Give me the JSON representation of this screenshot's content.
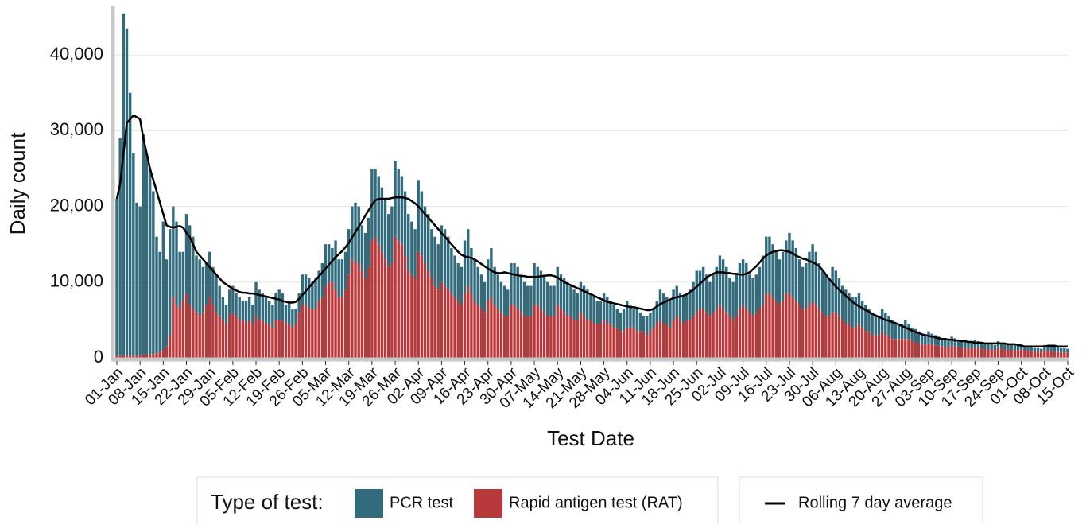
{
  "chart_data": {
    "type": "bar",
    "stacked": true,
    "grid": true,
    "x_label": "Test Date",
    "y_label": "Daily count",
    "legend_title": "Type of test:",
    "ylim": [
      0,
      46000
    ],
    "yticks": [
      0,
      {
        "value": 10000,
        "label": "10,000"
      },
      {
        "value": 20000,
        "label": "20,000"
      },
      {
        "value": 30000,
        "label": "30,000"
      },
      {
        "value": 40000,
        "label": "40,000"
      }
    ],
    "categories": [
      "01-Jan",
      null,
      null,
      null,
      null,
      null,
      null,
      "08-Jan",
      null,
      null,
      null,
      null,
      null,
      null,
      "15-Jan",
      null,
      null,
      null,
      null,
      null,
      null,
      "22-Jan",
      null,
      null,
      null,
      null,
      null,
      null,
      "29-Jan",
      null,
      null,
      null,
      null,
      null,
      null,
      "05-Feb",
      null,
      null,
      null,
      null,
      null,
      null,
      "12-Feb",
      null,
      null,
      null,
      null,
      null,
      null,
      "19-Feb",
      null,
      null,
      null,
      null,
      null,
      null,
      "26-Feb",
      null,
      null,
      null,
      null,
      null,
      null,
      "05-Mar",
      null,
      null,
      null,
      null,
      null,
      null,
      "12-Mar",
      null,
      null,
      null,
      null,
      null,
      null,
      "19-Mar",
      null,
      null,
      null,
      null,
      null,
      null,
      "26-Mar",
      null,
      null,
      null,
      null,
      null,
      null,
      "02-Apr",
      null,
      null,
      null,
      null,
      null,
      null,
      "09-Apr",
      null,
      null,
      null,
      null,
      null,
      null,
      "16-Apr",
      null,
      null,
      null,
      null,
      null,
      null,
      "23-Apr",
      null,
      null,
      null,
      null,
      null,
      null,
      "30-Apr",
      null,
      null,
      null,
      null,
      null,
      null,
      "07-May",
      null,
      null,
      null,
      null,
      null,
      null,
      "14-May",
      null,
      null,
      null,
      null,
      null,
      null,
      "21-May",
      null,
      null,
      null,
      null,
      null,
      null,
      "28-May",
      null,
      null,
      null,
      null,
      null,
      null,
      "04-Jun",
      null,
      null,
      null,
      null,
      null,
      null,
      "11-Jun",
      null,
      null,
      null,
      null,
      null,
      null,
      "18-Jun",
      null,
      null,
      null,
      null,
      null,
      null,
      "25-Jun",
      null,
      null,
      null,
      null,
      null,
      null,
      "02-Jul",
      null,
      null,
      null,
      null,
      null,
      null,
      "09-Jul",
      null,
      null,
      null,
      null,
      null,
      null,
      "16-Jul",
      null,
      null,
      null,
      null,
      null,
      null,
      "23-Jul",
      null,
      null,
      null,
      null,
      null,
      null,
      "30-Jul",
      null,
      null,
      null,
      null,
      null,
      null,
      "06-Aug",
      null,
      null,
      null,
      null,
      null,
      null,
      "13-Aug",
      null,
      null,
      null,
      null,
      null,
      null,
      "20-Aug",
      null,
      null,
      null,
      null,
      null,
      null,
      "27-Aug",
      null,
      null,
      null,
      null,
      null,
      null,
      "03-Sep",
      null,
      null,
      null,
      null,
      null,
      null,
      "10-Sep",
      null,
      null,
      null,
      null,
      null,
      null,
      "17-Sep",
      null,
      null,
      null,
      null,
      null,
      null,
      "24-Sep",
      null,
      null,
      null,
      null,
      null,
      null,
      "01-Oct",
      null,
      null,
      null,
      null,
      null,
      null,
      "08-Oct",
      null,
      null,
      null,
      null,
      null,
      null,
      "15-Oct"
    ],
    "series": [
      {
        "name": "PCR test",
        "color": "#326b7c",
        "values": [
          20700,
          28700,
          45200,
          43200,
          34700,
          26700,
          20200,
          19700,
          29000,
          26600,
          24500,
          21500,
          15400,
          13200,
          17000,
          11500,
          14000,
          12000,
          11000,
          7500,
          6500,
          10500,
          10500,
          9500,
          7500,
          7500,
          6000,
          5500,
          6000,
          5000,
          5000,
          4000,
          3000,
          2500,
          3500,
          3500,
          3000,
          3000,
          2500,
          3000,
          3000,
          2500,
          4500,
          4000,
          3500,
          3500,
          3000,
          3000,
          3500,
          4000,
          3500,
          2500,
          3000,
          2500,
          2000,
          2500,
          4000,
          4000,
          4000,
          3500,
          4000,
          4000,
          4500,
          5500,
          5000,
          4500,
          6500,
          5000,
          5000,
          5000,
          6000,
          7000,
          8000,
          7500,
          6000,
          6000,
          6500,
          9500,
          9000,
          9000,
          8500,
          8000,
          7000,
          7500,
          10000,
          9500,
          9000,
          8500,
          7500,
          7000,
          6500,
          9500,
          8500,
          7500,
          7500,
          6500,
          6500,
          6000,
          7500,
          7500,
          7000,
          6000,
          5500,
          5000,
          5000,
          7000,
          7500,
          6000,
          5500,
          5000,
          4500,
          4000,
          5500,
          6500,
          5000,
          4500,
          4000,
          4000,
          3500,
          5500,
          5500,
          5500,
          5000,
          4500,
          4000,
          4000,
          5500,
          5000,
          5000,
          5000,
          4500,
          4000,
          4000,
          5000,
          4500,
          4500,
          4500,
          4000,
          4000,
          3500,
          4000,
          4000,
          4000,
          3500,
          3500,
          3000,
          3000,
          3500,
          3500,
          3000,
          3000,
          2500,
          2500,
          3000,
          3500,
          3000,
          2500,
          3000,
          2500,
          2000,
          2500,
          2500,
          2500,
          3000,
          4000,
          4000,
          3500,
          3500,
          4000,
          4000,
          3500,
          3500,
          3500,
          4000,
          4500,
          5500,
          5000,
          5500,
          5000,
          4500,
          5000,
          5500,
          6500,
          6500,
          6000,
          5000,
          5000,
          5500,
          6000,
          6000,
          6000,
          5000,
          5000,
          5000,
          5500,
          6500,
          7500,
          7500,
          7000,
          6500,
          6000,
          6500,
          7000,
          8000,
          7500,
          7000,
          6000,
          5500,
          6000,
          7000,
          7500,
          7000,
          6000,
          5500,
          5500,
          5000,
          6000,
          5500,
          5000,
          4500,
          4500,
          4000,
          4000,
          4000,
          4000,
          3500,
          3500,
          3000,
          3000,
          2500,
          2500,
          3000,
          3000,
          2500,
          2500,
          2000,
          2000,
          2000,
          2500,
          2000,
          1800,
          1800,
          1500,
          1400,
          1300,
          1600,
          1400,
          1300,
          1200,
          1100,
          1000,
          1000,
          1200,
          1100,
          1000,
          1000,
          900,
          900,
          800,
          1000,
          900,
          800,
          800,
          700,
          700,
          700,
          900,
          800,
          800,
          700,
          700,
          700,
          600,
          700,
          600,
          600,
          500,
          500,
          500,
          500,
          700,
          700,
          600,
          600,
          600,
          500,
          600,
          500
        ]
      },
      {
        "name": "Rapid antigen test (RAT)",
        "color": "#b8393b",
        "values": [
          300,
          300,
          300,
          300,
          300,
          300,
          300,
          300,
          500,
          400,
          500,
          500,
          600,
          800,
          1000,
          1500,
          3000,
          8000,
          7000,
          6500,
          7500,
          8500,
          7000,
          6500,
          6000,
          5500,
          6000,
          7000,
          8000,
          7000,
          6000,
          5500,
          5000,
          4500,
          5500,
          6000,
          5500,
          5000,
          5000,
          4500,
          5000,
          4500,
          5500,
          5000,
          5000,
          4500,
          4500,
          4000,
          5000,
          5000,
          5000,
          4500,
          4500,
          4000,
          4500,
          6000,
          7000,
          7000,
          6500,
          6500,
          6500,
          7500,
          8000,
          9500,
          10000,
          10000,
          9000,
          8000,
          8000,
          9000,
          11000,
          13000,
          12500,
          12500,
          11500,
          10500,
          12000,
          15500,
          16000,
          15000,
          14000,
          13000,
          12000,
          12500,
          16000,
          15500,
          15000,
          13500,
          11500,
          11000,
          10500,
          14000,
          13500,
          12500,
          11500,
          10500,
          9500,
          9000,
          10000,
          9500,
          9000,
          8500,
          8000,
          7500,
          7000,
          8500,
          9500,
          8500,
          7500,
          7000,
          6500,
          6000,
          7500,
          8000,
          7000,
          6500,
          6000,
          5500,
          5500,
          7000,
          7000,
          6500,
          6000,
          5500,
          5500,
          5500,
          7000,
          7000,
          6500,
          6000,
          5500,
          5500,
          5500,
          7000,
          6500,
          6000,
          5500,
          5500,
          5000,
          5000,
          6000,
          5500,
          5000,
          5000,
          4500,
          4500,
          4500,
          5000,
          4500,
          4500,
          4000,
          4000,
          3500,
          3500,
          4000,
          4000,
          4000,
          3500,
          3500,
          3500,
          3000,
          3500,
          4000,
          4500,
          5000,
          4500,
          4500,
          4000,
          5000,
          5500,
          5000,
          4500,
          5000,
          5000,
          5500,
          6000,
          6500,
          6500,
          6000,
          5500,
          6000,
          6500,
          7000,
          6500,
          6000,
          5500,
          5000,
          5500,
          6500,
          7000,
          6500,
          6000,
          5500,
          6000,
          6500,
          7000,
          8500,
          8500,
          8000,
          7500,
          7000,
          7500,
          8500,
          8500,
          8000,
          7500,
          7000,
          6500,
          6500,
          7000,
          7500,
          7000,
          6500,
          6000,
          5500,
          5500,
          6000,
          6000,
          5500,
          5000,
          4500,
          4500,
          4000,
          4000,
          4500,
          4000,
          3500,
          3500,
          3000,
          3000,
          3000,
          3500,
          3000,
          3000,
          2500,
          2500,
          2500,
          2500,
          2500,
          2500,
          2200,
          2000,
          2000,
          1800,
          1700,
          1900,
          1800,
          1700,
          1600,
          1500,
          1400,
          1300,
          1600,
          1500,
          1400,
          1300,
          1300,
          1200,
          1200,
          1400,
          1300,
          1200,
          1100,
          1100,
          1100,
          1000,
          1300,
          1200,
          1100,
          1100,
          1000,
          1000,
          1000,
          1100,
          1000,
          900,
          900,
          800,
          800,
          700,
          1000,
          900,
          900,
          800,
          800,
          800,
          700,
          700
        ]
      },
      {
        "name": "Rolling 7 day average",
        "type": "line",
        "color": "#000000",
        "values": [
          21000,
          23000,
          27000,
          31000,
          31500,
          32000,
          31800,
          31500,
          29000,
          27000,
          25000,
          23500,
          22000,
          20500,
          19000,
          17500,
          17300,
          17200,
          17300,
          17400,
          17200,
          16500,
          16000,
          15000,
          14000,
          13500,
          13000,
          12500,
          12000,
          11500,
          11000,
          10500,
          10000,
          9700,
          9400,
          9100,
          8900,
          8700,
          8600,
          8600,
          8500,
          8500,
          8400,
          8300,
          8200,
          8100,
          8000,
          7900,
          7800,
          7700,
          7500,
          7400,
          7300,
          7300,
          7400,
          7800,
          8300,
          8800,
          9300,
          9800,
          10300,
          10800,
          11300,
          11800,
          12300,
          12800,
          13300,
          13700,
          14100,
          14600,
          15200,
          15900,
          16600,
          17300,
          18000,
          18800,
          19500,
          20200,
          20800,
          21000,
          21000,
          21000,
          21000,
          21100,
          21200,
          21200,
          21200,
          21100,
          21000,
          20700,
          20400,
          20000,
          19500,
          19000,
          18500,
          18000,
          17500,
          17000,
          16500,
          16000,
          15500,
          15000,
          14500,
          14000,
          13600,
          13400,
          13300,
          13200,
          13000,
          12700,
          12400,
          12100,
          11800,
          11500,
          11300,
          11200,
          11200,
          11300,
          11200,
          11100,
          11000,
          10900,
          10800,
          10800,
          10700,
          10700,
          10700,
          10700,
          10800,
          10800,
          10900,
          10900,
          10800,
          10600,
          10300,
          10000,
          9800,
          9600,
          9400,
          9200,
          9000,
          8800,
          8600,
          8400,
          8200,
          8000,
          7800,
          7600,
          7400,
          7300,
          7200,
          7100,
          7000,
          6900,
          6800,
          6700,
          6700,
          6600,
          6500,
          6400,
          6300,
          6300,
          6500,
          6800,
          7100,
          7300,
          7500,
          7700,
          7900,
          8000,
          8100,
          8200,
          8400,
          8700,
          9000,
          9400,
          9800,
          10200,
          10600,
          10900,
          11100,
          11300,
          11300,
          11300,
          11200,
          11200,
          11100,
          11100,
          11000,
          11000,
          11100,
          11300,
          11700,
          12100,
          12600,
          13100,
          13500,
          13800,
          14000,
          14100,
          14200,
          14200,
          14100,
          14000,
          13800,
          13500,
          13300,
          13100,
          13000,
          12800,
          12600,
          12400,
          12100,
          11600,
          11000,
          10400,
          9900,
          9400,
          9000,
          8600,
          8200,
          7800,
          7400,
          7100,
          6800,
          6600,
          6300,
          6100,
          5800,
          5600,
          5400,
          5200,
          5000,
          4900,
          4700,
          4600,
          4400,
          4200,
          4000,
          3800,
          3600,
          3400,
          3300,
          3100,
          3000,
          2900,
          2800,
          2700,
          2600,
          2500,
          2500,
          2400,
          2400,
          2300,
          2300,
          2200,
          2200,
          2100,
          2100,
          2000,
          2000,
          2000,
          1900,
          1900,
          1900,
          1900,
          1900,
          1900,
          1900,
          1800,
          1800,
          1800,
          1700,
          1600,
          1500,
          1500,
          1500,
          1500,
          1500,
          1500,
          1500,
          1600,
          1600,
          1600,
          1500,
          1500,
          1500,
          1500
        ]
      }
    ]
  }
}
